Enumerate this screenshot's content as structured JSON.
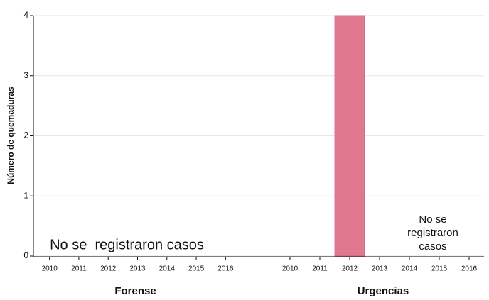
{
  "chart_data": [
    {
      "type": "bar",
      "title": "Forense",
      "ylabel": "Número de quemaduras",
      "categories": [
        "2010",
        "2011",
        "2012",
        "2013",
        "2014",
        "2015",
        "2016"
      ],
      "values": [
        0,
        0,
        0,
        0,
        0,
        0,
        0
      ],
      "color": "#e07890",
      "ylim": [
        0,
        4
      ],
      "yticks": [
        0,
        1,
        2,
        3,
        4
      ],
      "grid": true,
      "annotation": [
        "No se  registraron casos"
      ]
    },
    {
      "type": "bar",
      "title": "Urgencias",
      "categories": [
        "2010",
        "2011",
        "2012",
        "2013",
        "2014",
        "2015",
        "2016"
      ],
      "values": [
        0,
        0,
        4,
        0,
        0,
        0,
        0
      ],
      "color": "#e07890",
      "ylim": [
        0,
        4
      ],
      "grid": true,
      "annotation": [
        "No se",
        "registraron",
        "casos"
      ]
    }
  ]
}
